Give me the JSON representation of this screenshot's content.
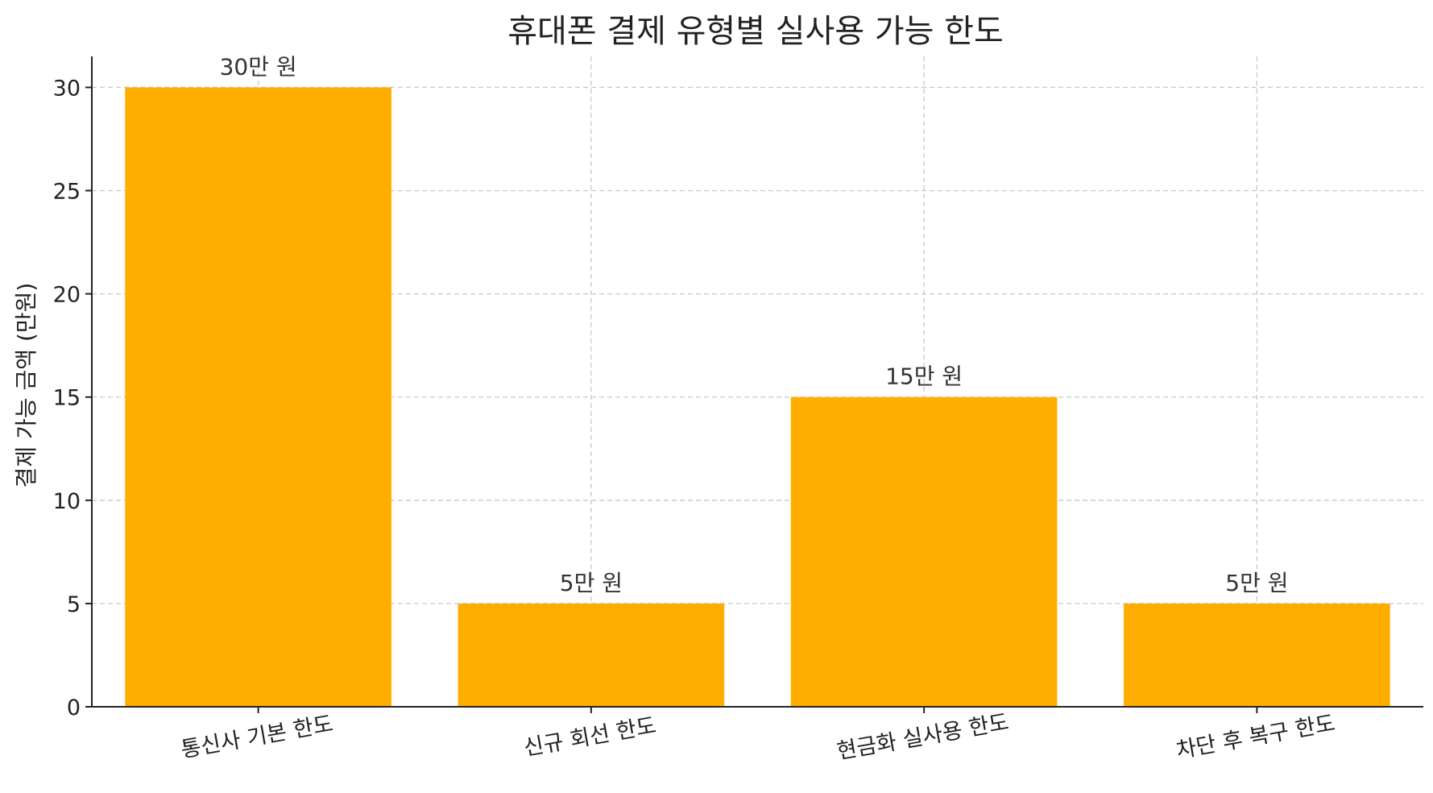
{
  "chart_data": {
    "type": "bar",
    "title": "휴대폰 결제 유형별 실사용 가능 한도",
    "xlabel": "",
    "ylabel": "결제 가능 금액 (만원)",
    "categories": [
      "통신사 기본 한도",
      "신규 회선 한도",
      "현금화 실사용 한도",
      "차단 후 복구 한도"
    ],
    "values": [
      30,
      5,
      15,
      5
    ],
    "data_labels": [
      "30만 원",
      "5만 원",
      "15만 원",
      "5만 원"
    ],
    "ylim": [
      0,
      31.5
    ],
    "yticks": [
      0,
      5,
      10,
      15,
      20,
      25,
      30
    ],
    "grid": true,
    "bar_color": "#FFAE00"
  }
}
